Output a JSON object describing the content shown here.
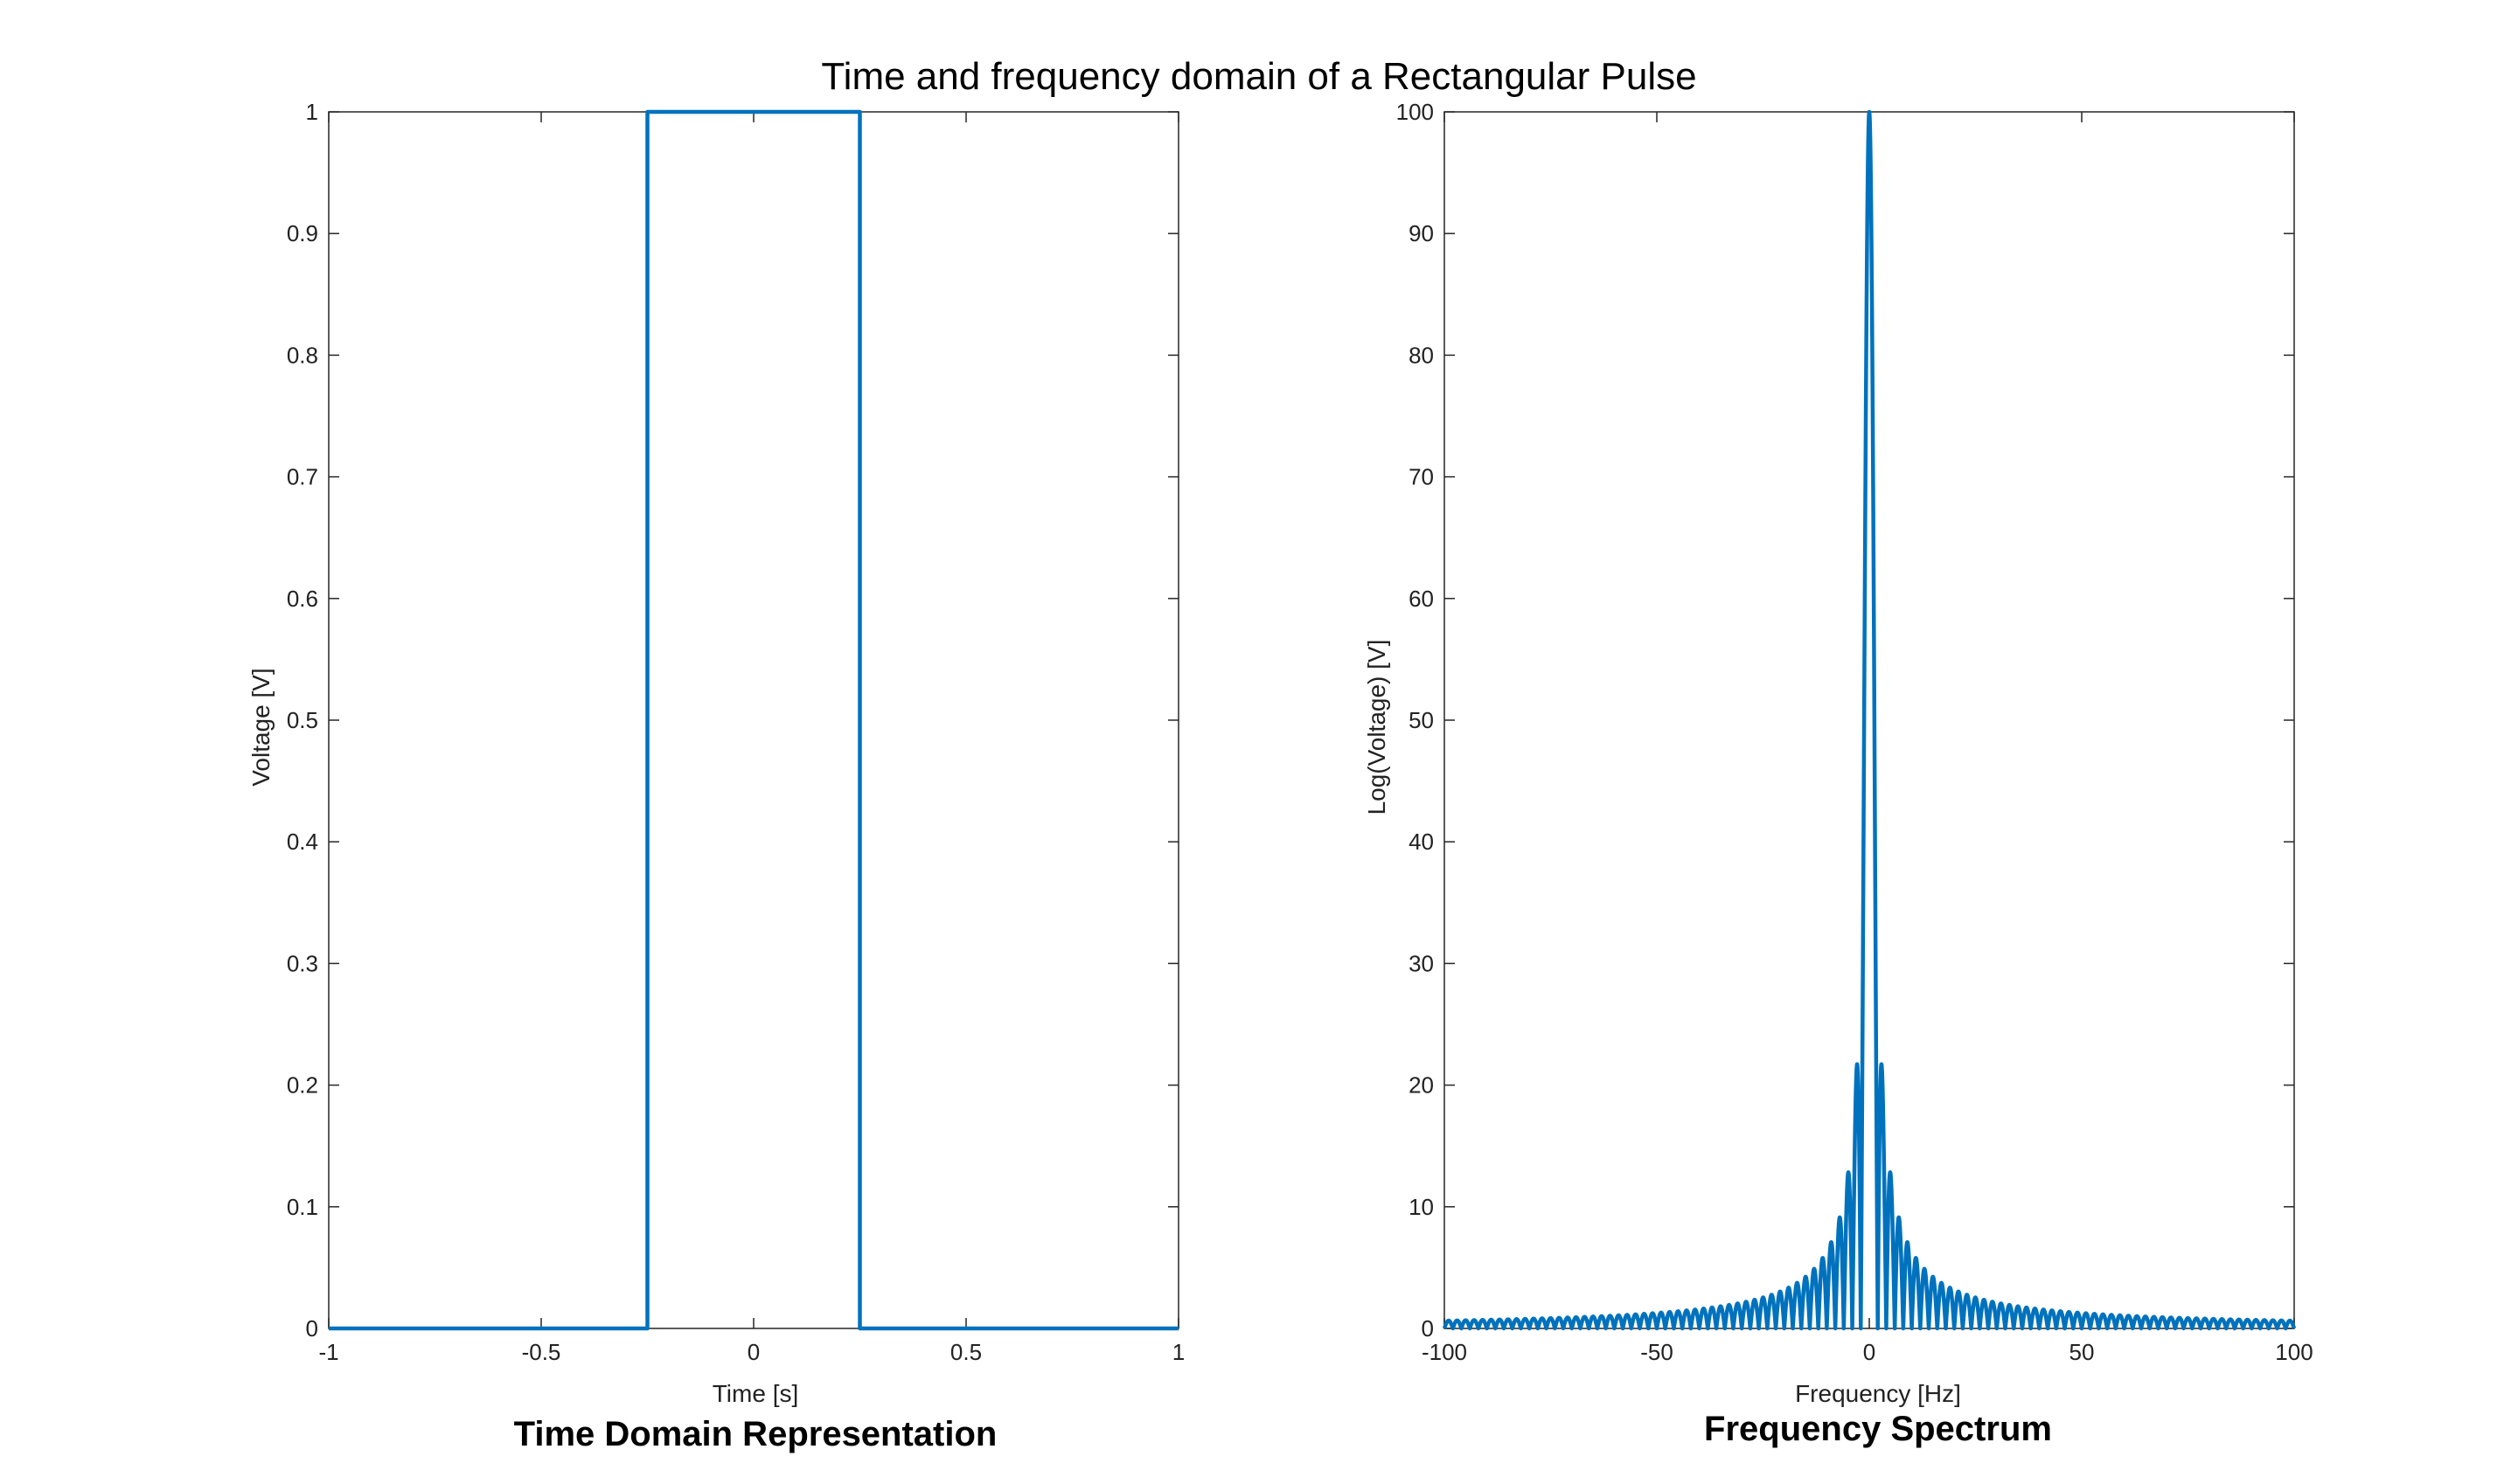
{
  "figure": {
    "suptitle": "Time and frequency domain of a Rectangular Pulse",
    "line_color": "#0072bd"
  },
  "chart_data": [
    {
      "type": "line",
      "title": "Time Domain Representation",
      "xlabel": "Time [s]",
      "ylabel": "Voltage [V]",
      "xlim": [
        -1,
        1
      ],
      "ylim": [
        0,
        1
      ],
      "xticks": [
        "-1",
        "-0.5",
        "0",
        "0.5",
        "1"
      ],
      "yticks": [
        "0",
        "0.1",
        "0.2",
        "0.3",
        "0.4",
        "0.5",
        "0.6",
        "0.7",
        "0.8",
        "0.9",
        "1"
      ],
      "grid": false,
      "series": [
        {
          "x": [
            -1,
            -0.25,
            -0.25,
            0.25,
            0.25,
            1
          ],
          "y": [
            0,
            0,
            1,
            1,
            0,
            0
          ]
        }
      ]
    },
    {
      "type": "line",
      "title": "Frequency Spectrum",
      "xlabel": "Frequency [Hz]",
      "ylabel": "Log(Voltage) [V]",
      "xlim": [
        -100,
        100
      ],
      "ylim": [
        0,
        100
      ],
      "xticks": [
        "-100",
        "-50",
        "0",
        "50",
        "100"
      ],
      "yticks": [
        "0",
        "10",
        "20",
        "30",
        "40",
        "50",
        "60",
        "70",
        "80",
        "90",
        "100"
      ],
      "grid": false,
      "series": [
        {
          "function": "abs(100*sin(0.5*pi*f)/(0.5*pi*f))",
          "f_range": [
            -100,
            100
          ],
          "peak": 100,
          "first_sidelobe": 21.2
        }
      ]
    }
  ]
}
